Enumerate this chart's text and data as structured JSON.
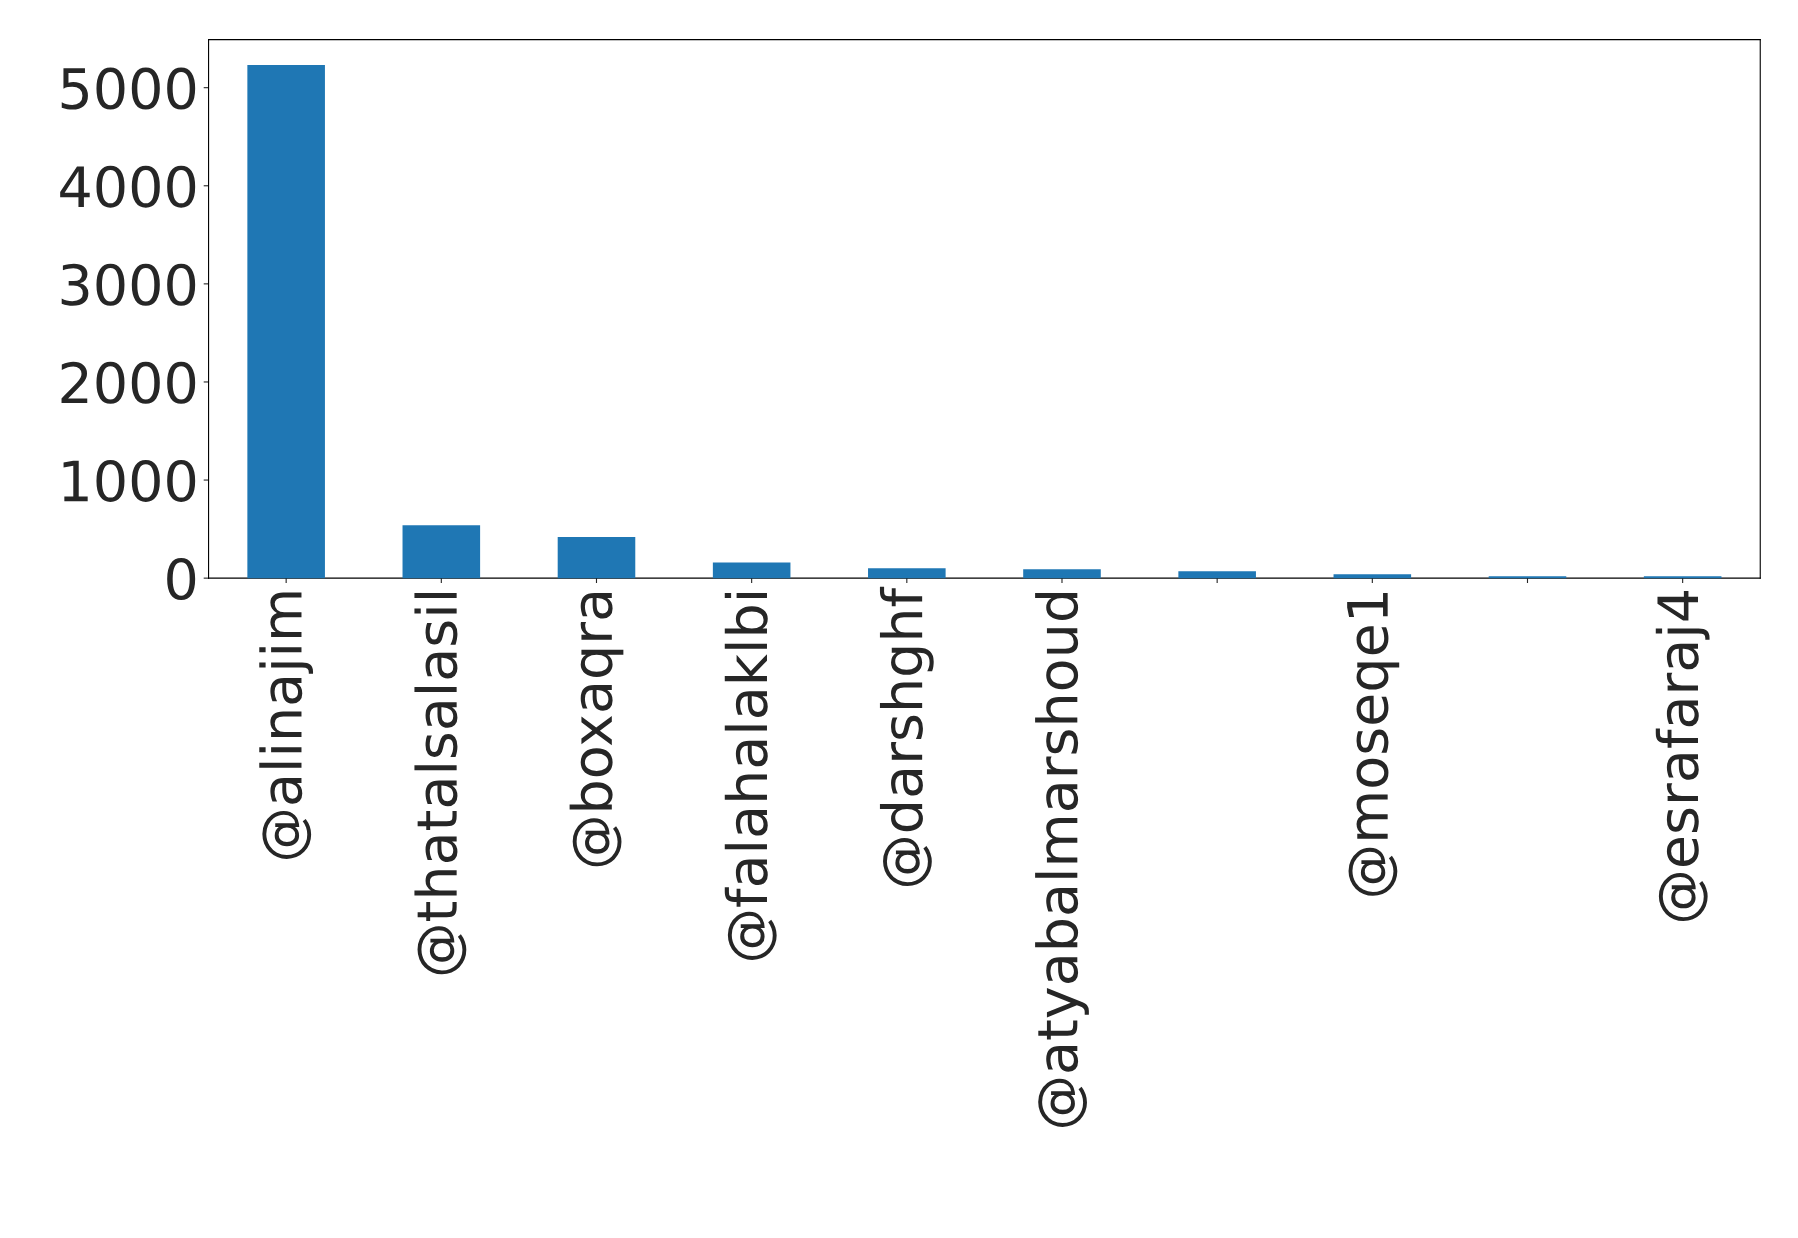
{
  "chart_data": {
    "type": "bar",
    "categories": [
      "@alinajim",
      "@thatalsalasil",
      "@boxaqra",
      "@falahalaklbi",
      "@darshghf",
      "@atyabalmarshoud",
      null,
      "@moseqe1",
      null,
      "@esrafaraj4"
    ],
    "values": [
      5230,
      540,
      420,
      160,
      100,
      90,
      70,
      40,
      20,
      20
    ],
    "color": "#1f77b4",
    "ylim": [
      0,
      5490
    ],
    "yticks": [
      0,
      1000,
      2000,
      3000,
      4000,
      5000
    ],
    "grid": false,
    "legend": false
  }
}
